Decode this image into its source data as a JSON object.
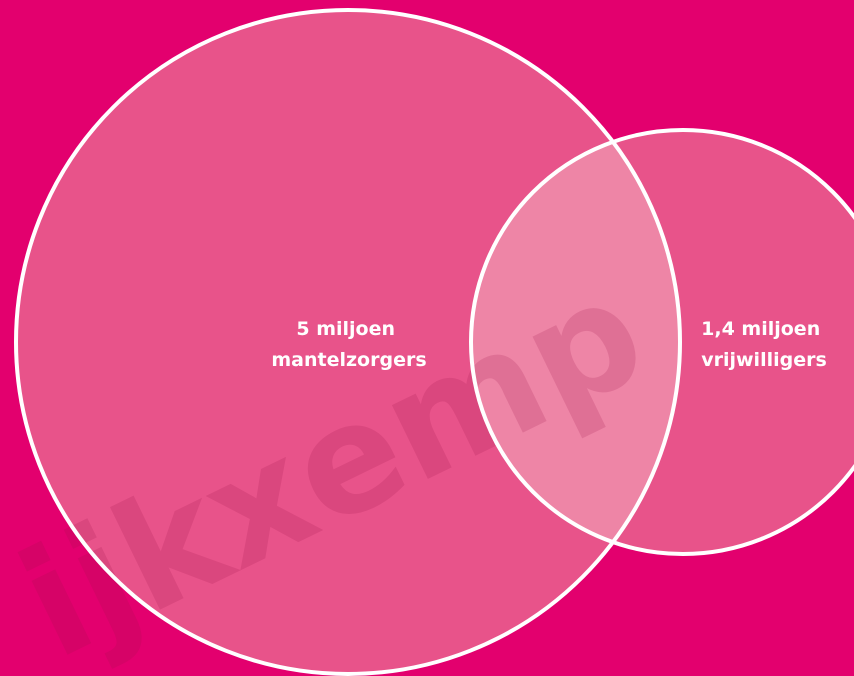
{
  "colors": {
    "background": "#e3006e",
    "circle_fill": "#e8538a",
    "overlap_fill": "#ee85a6",
    "stroke": "#ffffff"
  },
  "diagram": {
    "type": "venn",
    "sets": [
      {
        "id": "mantelzorgers",
        "value_line": "5 miljoen",
        "name_line": "mantelzorgers"
      },
      {
        "id": "vrijwilligers",
        "value_line": "1,4 miljoen",
        "name_line": "vrijwilligers"
      }
    ]
  },
  "watermark": {
    "text": "ijkxemp",
    "kind": "watermark"
  }
}
